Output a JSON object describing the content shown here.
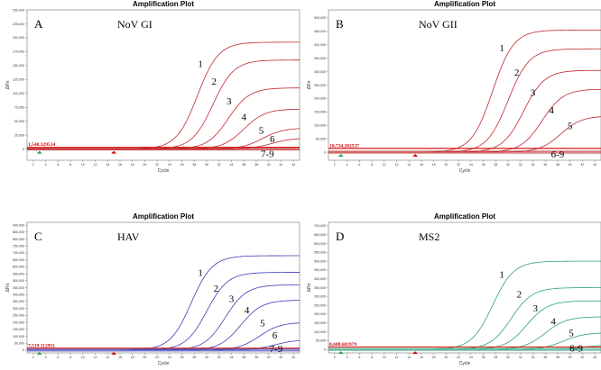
{
  "chart_data": [
    {
      "type": "line",
      "panel": "A",
      "virus": "NoV GI",
      "title": "Amplification Plot",
      "xlabel": "Cycle",
      "ylabel": "ΔRn",
      "xlim": [
        1,
        45
      ],
      "xticks": [
        "2",
        "4",
        "6",
        "8",
        "10",
        "12",
        "14",
        "16",
        "18",
        "20",
        "22",
        "24",
        "26",
        "28",
        "30",
        "32",
        "34",
        "36",
        "38",
        "40",
        "42",
        "44"
      ],
      "ylim": [
        -20000,
        250000
      ],
      "yticks": [
        0,
        25000,
        50000,
        75000,
        100000,
        125000,
        150000,
        175000,
        200000,
        225000,
        250000
      ],
      "ytick_labels": [
        "0",
        "25,000",
        "50,000",
        "75,000",
        "100,000",
        "125,000",
        "150,000",
        "175,000",
        "200,000",
        "225,000",
        "250,000"
      ],
      "threshold": 1548.329534,
      "threshold_label": "1,548.329534",
      "color": "#c0282d",
      "series": [
        {
          "name": "1",
          "max": 192000,
          "ct": 28.5
        },
        {
          "name": "2",
          "max": 160000,
          "ct": 31
        },
        {
          "name": "3",
          "max": 110000,
          "ct": 33.5
        },
        {
          "name": "4",
          "max": 72000,
          "ct": 36
        },
        {
          "name": "5",
          "max": 38000,
          "ct": 39
        },
        {
          "name": "6",
          "max": 20000,
          "ct": 40.5
        }
      ],
      "labels": [
        {
          "text": "1",
          "x": 29,
          "y": 147000
        },
        {
          "text": "2",
          "x": 31.2,
          "y": 116000
        },
        {
          "text": "3",
          "x": 33.6,
          "y": 80000
        },
        {
          "text": "4",
          "x": 36,
          "y": 52000
        },
        {
          "text": "5",
          "x": 38.8,
          "y": 28000
        },
        {
          "text": "6",
          "x": 40.6,
          "y": 12000
        },
        {
          "text": "7-9",
          "x": 39.8,
          "y": -14000
        }
      ]
    },
    {
      "type": "line",
      "panel": "B",
      "virus": "NoV GII",
      "title": "Amplification Plot",
      "xlabel": "Cycle",
      "ylabel": "ΔRn",
      "xlim": [
        1,
        45
      ],
      "xticks": [
        "2",
        "4",
        "6",
        "8",
        "10",
        "12",
        "14",
        "16",
        "18",
        "20",
        "22",
        "24",
        "26",
        "28",
        "30",
        "32",
        "34",
        "36",
        "38",
        "40",
        "42",
        "44"
      ],
      "ylim": [
        -30000,
        530000
      ],
      "yticks": [
        0,
        50000,
        100000,
        150000,
        200000,
        250000,
        300000,
        350000,
        400000,
        450000,
        500000
      ],
      "ytick_labels": [
        "0",
        "50,000",
        "100,000",
        "150,000",
        "200,000",
        "250,000",
        "300,000",
        "350,000",
        "400,000",
        "450,000",
        "500,000"
      ],
      "threshold": 10734.202537,
      "threshold_label": "10,734.202537",
      "color": "#c0282d",
      "series": [
        {
          "name": "1",
          "max": 455000,
          "ct": 27.5
        },
        {
          "name": "2",
          "max": 385000,
          "ct": 30
        },
        {
          "name": "3",
          "max": 305000,
          "ct": 32.5
        },
        {
          "name": "4",
          "max": 235000,
          "ct": 35.5
        },
        {
          "name": "5",
          "max": 135000,
          "ct": 38.5
        }
      ],
      "labels": [
        {
          "text": "1",
          "x": 29,
          "y": 375000
        },
        {
          "text": "2",
          "x": 31.4,
          "y": 285000
        },
        {
          "text": "3",
          "x": 34,
          "y": 210000
        },
        {
          "text": "4",
          "x": 37,
          "y": 145000
        },
        {
          "text": "5",
          "x": 40,
          "y": 85000
        },
        {
          "text": "6-9",
          "x": 38,
          "y": -20000
        }
      ]
    },
    {
      "type": "line",
      "panel": "C",
      "virus": "HAV",
      "title": "Amplification Plot",
      "xlabel": "Cycle",
      "ylabel": "ΔRn",
      "xlim": [
        1,
        45
      ],
      "xticks": [
        "2",
        "4",
        "6",
        "8",
        "10",
        "12",
        "14",
        "16",
        "18",
        "20",
        "22",
        "24",
        "26",
        "28",
        "30",
        "32",
        "34",
        "36",
        "38",
        "40",
        "42",
        "44"
      ],
      "ylim": [
        -20000,
        920000
      ],
      "yticks": [
        0,
        50000,
        100000,
        150000,
        200000,
        250000,
        300000,
        350000,
        400000,
        450000,
        500000,
        550000,
        600000,
        650000,
        700000,
        750000,
        800000,
        850000,
        900000
      ],
      "ytick_labels": [
        "0",
        "50,000",
        "100,000",
        "150,000",
        "200,000",
        "250,000",
        "300,000",
        "350,000",
        "400,000",
        "450,000",
        "500,000",
        "550,000",
        "600,000",
        "650,000",
        "700,000",
        "750,000",
        "800,000",
        "850,000",
        "900,000"
      ],
      "threshold": 7519.112951,
      "threshold_label": "7,519.112951",
      "color": "#3a3fb5",
      "series": [
        {
          "name": "1",
          "max": 680000,
          "ct": 27.5
        },
        {
          "name": "2",
          "max": 560000,
          "ct": 30
        },
        {
          "name": "3",
          "max": 470000,
          "ct": 33
        },
        {
          "name": "4",
          "max": 360000,
          "ct": 35.5
        },
        {
          "name": "5",
          "max": 200000,
          "ct": 38.5
        },
        {
          "name": "6",
          "max": 75000,
          "ct": 41
        }
      ],
      "labels": [
        {
          "text": "1",
          "x": 29,
          "y": 535000
        },
        {
          "text": "2",
          "x": 31.5,
          "y": 420000
        },
        {
          "text": "3",
          "x": 34,
          "y": 345000
        },
        {
          "text": "4",
          "x": 36.5,
          "y": 265000
        },
        {
          "text": "5",
          "x": 39,
          "y": 170000
        },
        {
          "text": "6",
          "x": 41,
          "y": 85000
        },
        {
          "text": "7-9",
          "x": 41.2,
          "y": -14000
        }
      ]
    },
    {
      "type": "line",
      "panel": "D",
      "virus": "MS2",
      "title": "Amplification Plot",
      "xlabel": "Cycle",
      "ylabel": "ΔRn",
      "xlim": [
        1,
        45
      ],
      "xticks": [
        "2",
        "4",
        "6",
        "8",
        "10",
        "12",
        "14",
        "16",
        "18",
        "20",
        "22",
        "24",
        "26",
        "28",
        "30",
        "32",
        "34",
        "36",
        "38",
        "40",
        "42",
        "44"
      ],
      "ylim": [
        -20000,
        720000
      ],
      "yticks": [
        0,
        50000,
        100000,
        150000,
        200000,
        250000,
        300000,
        350000,
        400000,
        450000,
        500000,
        550000,
        600000,
        650000,
        700000
      ],
      "ytick_labels": [
        "0",
        "50,000",
        "100,000",
        "150,000",
        "200,000",
        "250,000",
        "300,000",
        "350,000",
        "400,000",
        "450,000",
        "500,000",
        "550,000",
        "600,000",
        "650,000",
        "700,000"
      ],
      "threshold": 8688.683979,
      "threshold_label": "8,688.683979",
      "color": "#2fa27a",
      "series": [
        {
          "name": "1",
          "max": 500000,
          "ct": 27.5
        },
        {
          "name": "2",
          "max": 350000,
          "ct": 30.5
        },
        {
          "name": "3",
          "max": 275000,
          "ct": 33
        },
        {
          "name": "4",
          "max": 185000,
          "ct": 36
        },
        {
          "name": "5",
          "max": 95000,
          "ct": 39
        },
        {
          "name": "6",
          "max": 25000,
          "ct": 42
        }
      ],
      "labels": [
        {
          "text": "1",
          "x": 29,
          "y": 405000
        },
        {
          "text": "2",
          "x": 31.8,
          "y": 295000
        },
        {
          "text": "3",
          "x": 34.4,
          "y": 215000
        },
        {
          "text": "4",
          "x": 37.3,
          "y": 140000
        },
        {
          "text": "5",
          "x": 40.2,
          "y": 75000
        },
        {
          "text": "6-9",
          "x": 41,
          "y": -12000
        }
      ]
    }
  ]
}
